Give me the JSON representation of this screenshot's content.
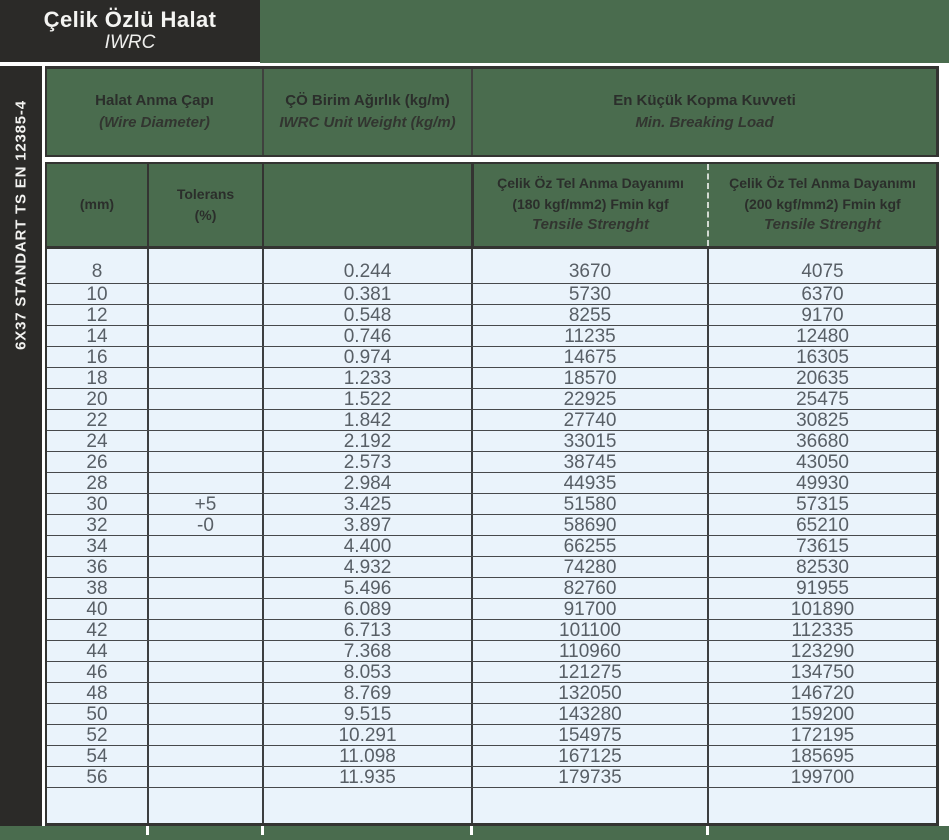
{
  "header": {
    "title": "Çelik Özlü Halat",
    "subtitle": "IWRC"
  },
  "sidebar": {
    "standard": "6X37 STANDART TS EN 12385-4"
  },
  "table": {
    "groups": [
      {
        "title": "Halat Anma Çapı",
        "subtitle": "(Wire Diameter)"
      },
      {
        "title": "ÇÖ Birim Ağırlık (kg/m)",
        "subtitle": "IWRC Unit Weight  (kg/m)"
      },
      {
        "title": "En Küçük Kopma Kuvveti",
        "subtitle": "Min. Breaking Load"
      }
    ],
    "subheaders": {
      "diameter_unit": "(mm)",
      "tolerance_title": "Tolerans",
      "tolerance_unit": "(%)",
      "load180_line1": "Çelik Öz Tel Anma Dayanımı",
      "load180_line2": "(180 kgf/mm2) Fmin kgf",
      "load180_line3": "Tensile Strenght",
      "load200_line1": "Çelik Öz Tel Anma Dayanımı",
      "load200_line2": "(200 kgf/mm2) Fmin kgf",
      "load200_line3": "Tensile Strenght"
    },
    "rows": [
      [
        "8",
        "",
        "0.244",
        "3670",
        "4075"
      ],
      [
        "10",
        "",
        "0.381",
        "5730",
        "6370"
      ],
      [
        "12",
        "",
        "0.548",
        "8255",
        "9170"
      ],
      [
        "14",
        "",
        "0.746",
        "11235",
        "12480"
      ],
      [
        "16",
        "",
        "0.974",
        "14675",
        "16305"
      ],
      [
        "18",
        "",
        "1.233",
        "18570",
        "20635"
      ],
      [
        "20",
        "",
        "1.522",
        "22925",
        "25475"
      ],
      [
        "22",
        "",
        "1.842",
        "27740",
        "30825"
      ],
      [
        "24",
        "",
        "2.192",
        "33015",
        "36680"
      ],
      [
        "26",
        "",
        "2.573",
        "38745",
        "43050"
      ],
      [
        "28",
        "",
        "2.984",
        "44935",
        "49930"
      ],
      [
        "30",
        "+5",
        "3.425",
        "51580",
        "57315"
      ],
      [
        "32",
        "-0",
        "3.897",
        "58690",
        "65210"
      ],
      [
        "34",
        "",
        "4.400",
        "66255",
        "73615"
      ],
      [
        "36",
        "",
        "4.932",
        "74280",
        "82530"
      ],
      [
        "38",
        "",
        "5.496",
        "82760",
        "91955"
      ],
      [
        "40",
        "",
        "6.089",
        "91700",
        "101890"
      ],
      [
        "42",
        "",
        "6.713",
        "101100",
        "112335"
      ],
      [
        "44",
        "",
        "7.368",
        "110960",
        "123290"
      ],
      [
        "46",
        "",
        "8.053",
        "121275",
        "134750"
      ],
      [
        "48",
        "",
        "8.769",
        "132050",
        "146720"
      ],
      [
        "50",
        "",
        "9.515",
        "143280",
        "159200"
      ],
      [
        "52",
        "",
        "10.291",
        "154975",
        "172195"
      ],
      [
        "54",
        "",
        "11.098",
        "167125",
        "185695"
      ],
      [
        "56",
        "",
        "11.935",
        "179735",
        "199700"
      ],
      [
        "",
        "",
        "",
        "",
        ""
      ]
    ]
  },
  "colors": {
    "accent_green": "#4a6c4e",
    "dark": "#2b2a28",
    "row_background": "#eaf3fb"
  }
}
